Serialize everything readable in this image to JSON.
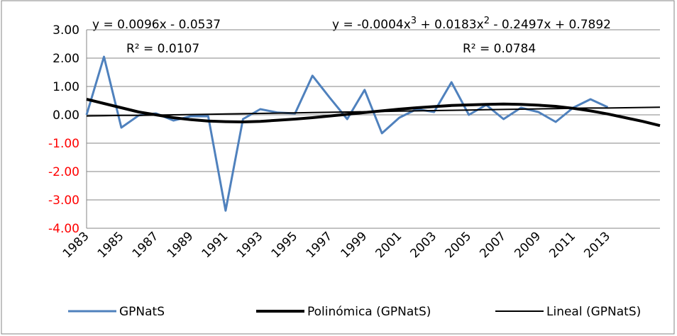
{
  "chart_data": {
    "type": "line",
    "categories": [
      "1983",
      null,
      "1985",
      null,
      "1987",
      null,
      "1989",
      null,
      "1991",
      null,
      "1993",
      null,
      "1995",
      null,
      "1997",
      null,
      "1999",
      null,
      "2001",
      null,
      "2003",
      null,
      "2005",
      null,
      "2007",
      null,
      "2009",
      null,
      "2011",
      null,
      "2013",
      null,
      null,
      null
    ],
    "series": [
      {
        "name": "GPNatS",
        "color": "#4f81bd",
        "width": 3,
        "values": [
          0.0,
          2.05,
          -0.45,
          -0.02,
          0.05,
          -0.2,
          -0.05,
          -0.05,
          -3.38,
          -0.15,
          0.2,
          0.08,
          0.05,
          1.38,
          0.6,
          -0.15,
          0.88,
          -0.65,
          -0.1,
          0.2,
          0.1,
          1.15,
          0.0,
          0.35,
          -0.15,
          0.25,
          0.1,
          -0.25,
          0.25,
          0.55,
          0.27,
          null,
          null,
          null
        ]
      },
      {
        "name": "Polinómica (GPNatS)",
        "color": "#000000",
        "width": 4,
        "values": [
          0.55,
          0.4,
          0.25,
          0.1,
          0.0,
          -0.1,
          -0.17,
          -0.22,
          -0.24,
          -0.25,
          -0.23,
          -0.19,
          -0.15,
          -0.1,
          -0.04,
          0.02,
          0.08,
          0.14,
          0.2,
          0.25,
          0.29,
          0.33,
          0.35,
          0.37,
          0.38,
          0.37,
          0.34,
          0.3,
          0.23,
          0.14,
          0.03,
          -0.1,
          -0.23,
          -0.38
        ]
      },
      {
        "name": "Lineal (GPNatS)",
        "color": "#000000",
        "width": 2,
        "values": [
          -0.04,
          -0.03,
          -0.02,
          -0.02,
          -0.01,
          0.0,
          0.01,
          0.02,
          0.03,
          0.04,
          0.05,
          0.06,
          0.07,
          0.08,
          0.09,
          0.1,
          0.11,
          0.12,
          0.13,
          0.14,
          0.15,
          0.16,
          0.17,
          0.18,
          0.19,
          0.2,
          0.21,
          0.22,
          0.23,
          0.24,
          0.24,
          0.25,
          0.26,
          0.27
        ]
      }
    ],
    "ylim": [
      -4,
      3
    ],
    "yticks": [
      {
        "value": -4,
        "label": "-4.00"
      },
      {
        "value": -3,
        "label": "-3.00"
      },
      {
        "value": -2,
        "label": "-2.00"
      },
      {
        "value": -1,
        "label": "-1.00"
      },
      {
        "value": 0,
        "label": "0.00"
      },
      {
        "value": 1,
        "label": "1.00"
      },
      {
        "value": 2,
        "label": "2.00"
      },
      {
        "value": 3,
        "label": "3.00"
      }
    ],
    "negative_tick_color": "#ff0000",
    "grid": true,
    "legend": "bottom",
    "linear_equation": "y = 0.0096x - 0.0537",
    "linear_r2": "R² = 0.0107",
    "poly_equation": [
      "y = -0.0004x",
      "3",
      " + 0.0183x",
      "2",
      " - 0.2497x + 0.7892"
    ],
    "poly_r2": "R² = 0.0784"
  }
}
